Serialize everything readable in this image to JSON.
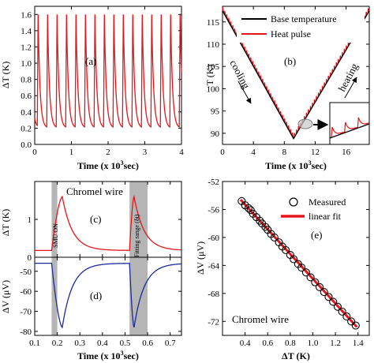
{
  "colors": {
    "red": "#e4161b",
    "blue": "#1c2a9e",
    "black": "#000000",
    "shade": "#b5b5b5"
  },
  "chart_data": [
    {
      "panel": "(a)",
      "type": "line",
      "xlabel": "Time (x 10",
      "xlabel_sup": "3",
      "xlabel_tail": "sec)",
      "ylabel": "ΔT (K)",
      "xlim": [
        0,
        4
      ],
      "ylim": [
        0,
        1.7
      ],
      "xticks": [
        "0",
        "1",
        "2",
        "3",
        "4"
      ],
      "yticks": [
        "0.0",
        "0.2",
        "0.4",
        "0.6",
        "0.8",
        "1.0",
        "1.2",
        "1.4",
        "1.6"
      ],
      "series": [
        {
          "color": "#e4161b",
          "pulse_period": 0.258,
          "first_pulse_time": 0.07,
          "peak": 1.6,
          "baseline": 0.2,
          "start_value": 0.32,
          "end_time": 4.0
        }
      ]
    },
    {
      "panel": "(b)",
      "type": "line",
      "xlabel": "Time (x 10",
      "xlabel_sup": "3",
      "xlabel_tail": "sec)",
      "ylabel": "T (K)",
      "xlim": [
        0,
        19
      ],
      "ylim": [
        87.5,
        118.5
      ],
      "xticks": [
        "0",
        "4",
        "8",
        "12",
        "16"
      ],
      "yticks": [
        "90",
        "95",
        "100",
        "105",
        "110",
        "115"
      ],
      "legend": [
        "Base temperature",
        "Heat pulse"
      ],
      "annotations": [
        "cooling",
        "heating"
      ],
      "series": [
        {
          "name": "Base temperature",
          "color": "#000000",
          "x": [
            0,
            9.2,
            19
          ],
          "y": [
            117.5,
            88.8,
            117.5
          ]
        },
        {
          "name": "Heat pulse",
          "color": "#e4161b",
          "x": [
            0,
            9.2,
            19
          ],
          "y": [
            117.5,
            88.8,
            117.5
          ],
          "spike_height": 1.6,
          "spike_period": 0.258
        }
      ],
      "inset": {
        "type": "line",
        "series_colors": [
          "#000000",
          "#e4161b"
        ]
      }
    },
    {
      "panel": "(c)",
      "type": "line",
      "ylabel": "ΔT (K)",
      "annotation": "Chromel wire",
      "xlim": [
        0.1,
        0.75
      ],
      "ylim": [
        0,
        2.0
      ],
      "yticks": [
        "0",
        "1"
      ],
      "shaded_regions": [
        [
          0.175,
          0.2
        ],
        [
          0.52,
          0.6
        ]
      ],
      "region_labels": [
        "SMU ON",
        "Fitting range (δt)"
      ],
      "series": [
        {
          "color": "#e4161b",
          "baseline": 0.18,
          "pulses": [
            {
              "start": 0.175,
              "peak_time": 0.222,
              "peak": 1.6
            },
            {
              "start": 0.52,
              "peak_time": 0.54,
              "peak": 1.6
            }
          ]
        }
      ]
    },
    {
      "panel": "(d)",
      "type": "line",
      "xlabel": "Time (x 10",
      "xlabel_sup": "3",
      "xlabel_tail": "sec)",
      "ylabel": "ΔV (μV)",
      "xlim": [
        0.1,
        0.75
      ],
      "ylim": [
        -82,
        -43
      ],
      "xticks": [
        "0.1",
        "0.2",
        "0.3",
        "0.4",
        "0.5",
        "0.6",
        "0.7"
      ],
      "yticks": [
        "-50",
        "-60",
        "-70",
        "-80"
      ],
      "shaded_regions": [
        [
          0.175,
          0.2
        ],
        [
          0.52,
          0.6
        ]
      ],
      "series": [
        {
          "color": "#1c2a9e",
          "baseline": -46,
          "pulses": [
            {
              "start": 0.175,
              "peak_time": 0.222,
              "peak": -78
            },
            {
              "start": 0.52,
              "peak_time": 0.54,
              "peak": -78
            }
          ]
        }
      ]
    },
    {
      "panel": "(e)",
      "type": "scatter",
      "xlabel": "ΔT (K)",
      "ylabel": "ΔV (μV)",
      "xlim": [
        0.2,
        1.5
      ],
      "ylim": [
        -74,
        -52
      ],
      "xticks": [
        "0.4",
        "0.6",
        "0.8",
        "1.0",
        "1.2",
        "1.4"
      ],
      "yticks": [
        "-52",
        "-56",
        "-60",
        "-64",
        "-68",
        "-72"
      ],
      "legend": [
        "Measured",
        "linear fit"
      ],
      "annotation": "Chromel wire",
      "series": [
        {
          "name": "Measured",
          "marker": "open-circle",
          "x": [
            0.37,
            0.4,
            0.43,
            0.45,
            0.47,
            0.5,
            0.53,
            0.55,
            0.58,
            0.6,
            0.63,
            0.66,
            0.7,
            0.73,
            0.76,
            0.8,
            0.83,
            0.87,
            0.9,
            0.94,
            0.98,
            1.02,
            1.06,
            1.1,
            1.14,
            1.18,
            1.22,
            1.26,
            1.3,
            1.34,
            1.38
          ],
          "y": [
            -54.8,
            -55.4,
            -55.8,
            -56.1,
            -56.6,
            -57.1,
            -57.6,
            -58.0,
            -58.5,
            -58.9,
            -59.5,
            -60.0,
            -60.7,
            -61.3,
            -61.8,
            -62.5,
            -63.1,
            -63.8,
            -64.3,
            -65.0,
            -65.7,
            -66.4,
            -67.1,
            -67.8,
            -68.5,
            -69.2,
            -69.9,
            -70.6,
            -71.3,
            -72.0,
            -72.6
          ]
        },
        {
          "name": "linear fit",
          "color": "#e4161b",
          "x": [
            0.36,
            1.39
          ],
          "y": [
            -54.6,
            -72.8
          ]
        }
      ]
    }
  ]
}
